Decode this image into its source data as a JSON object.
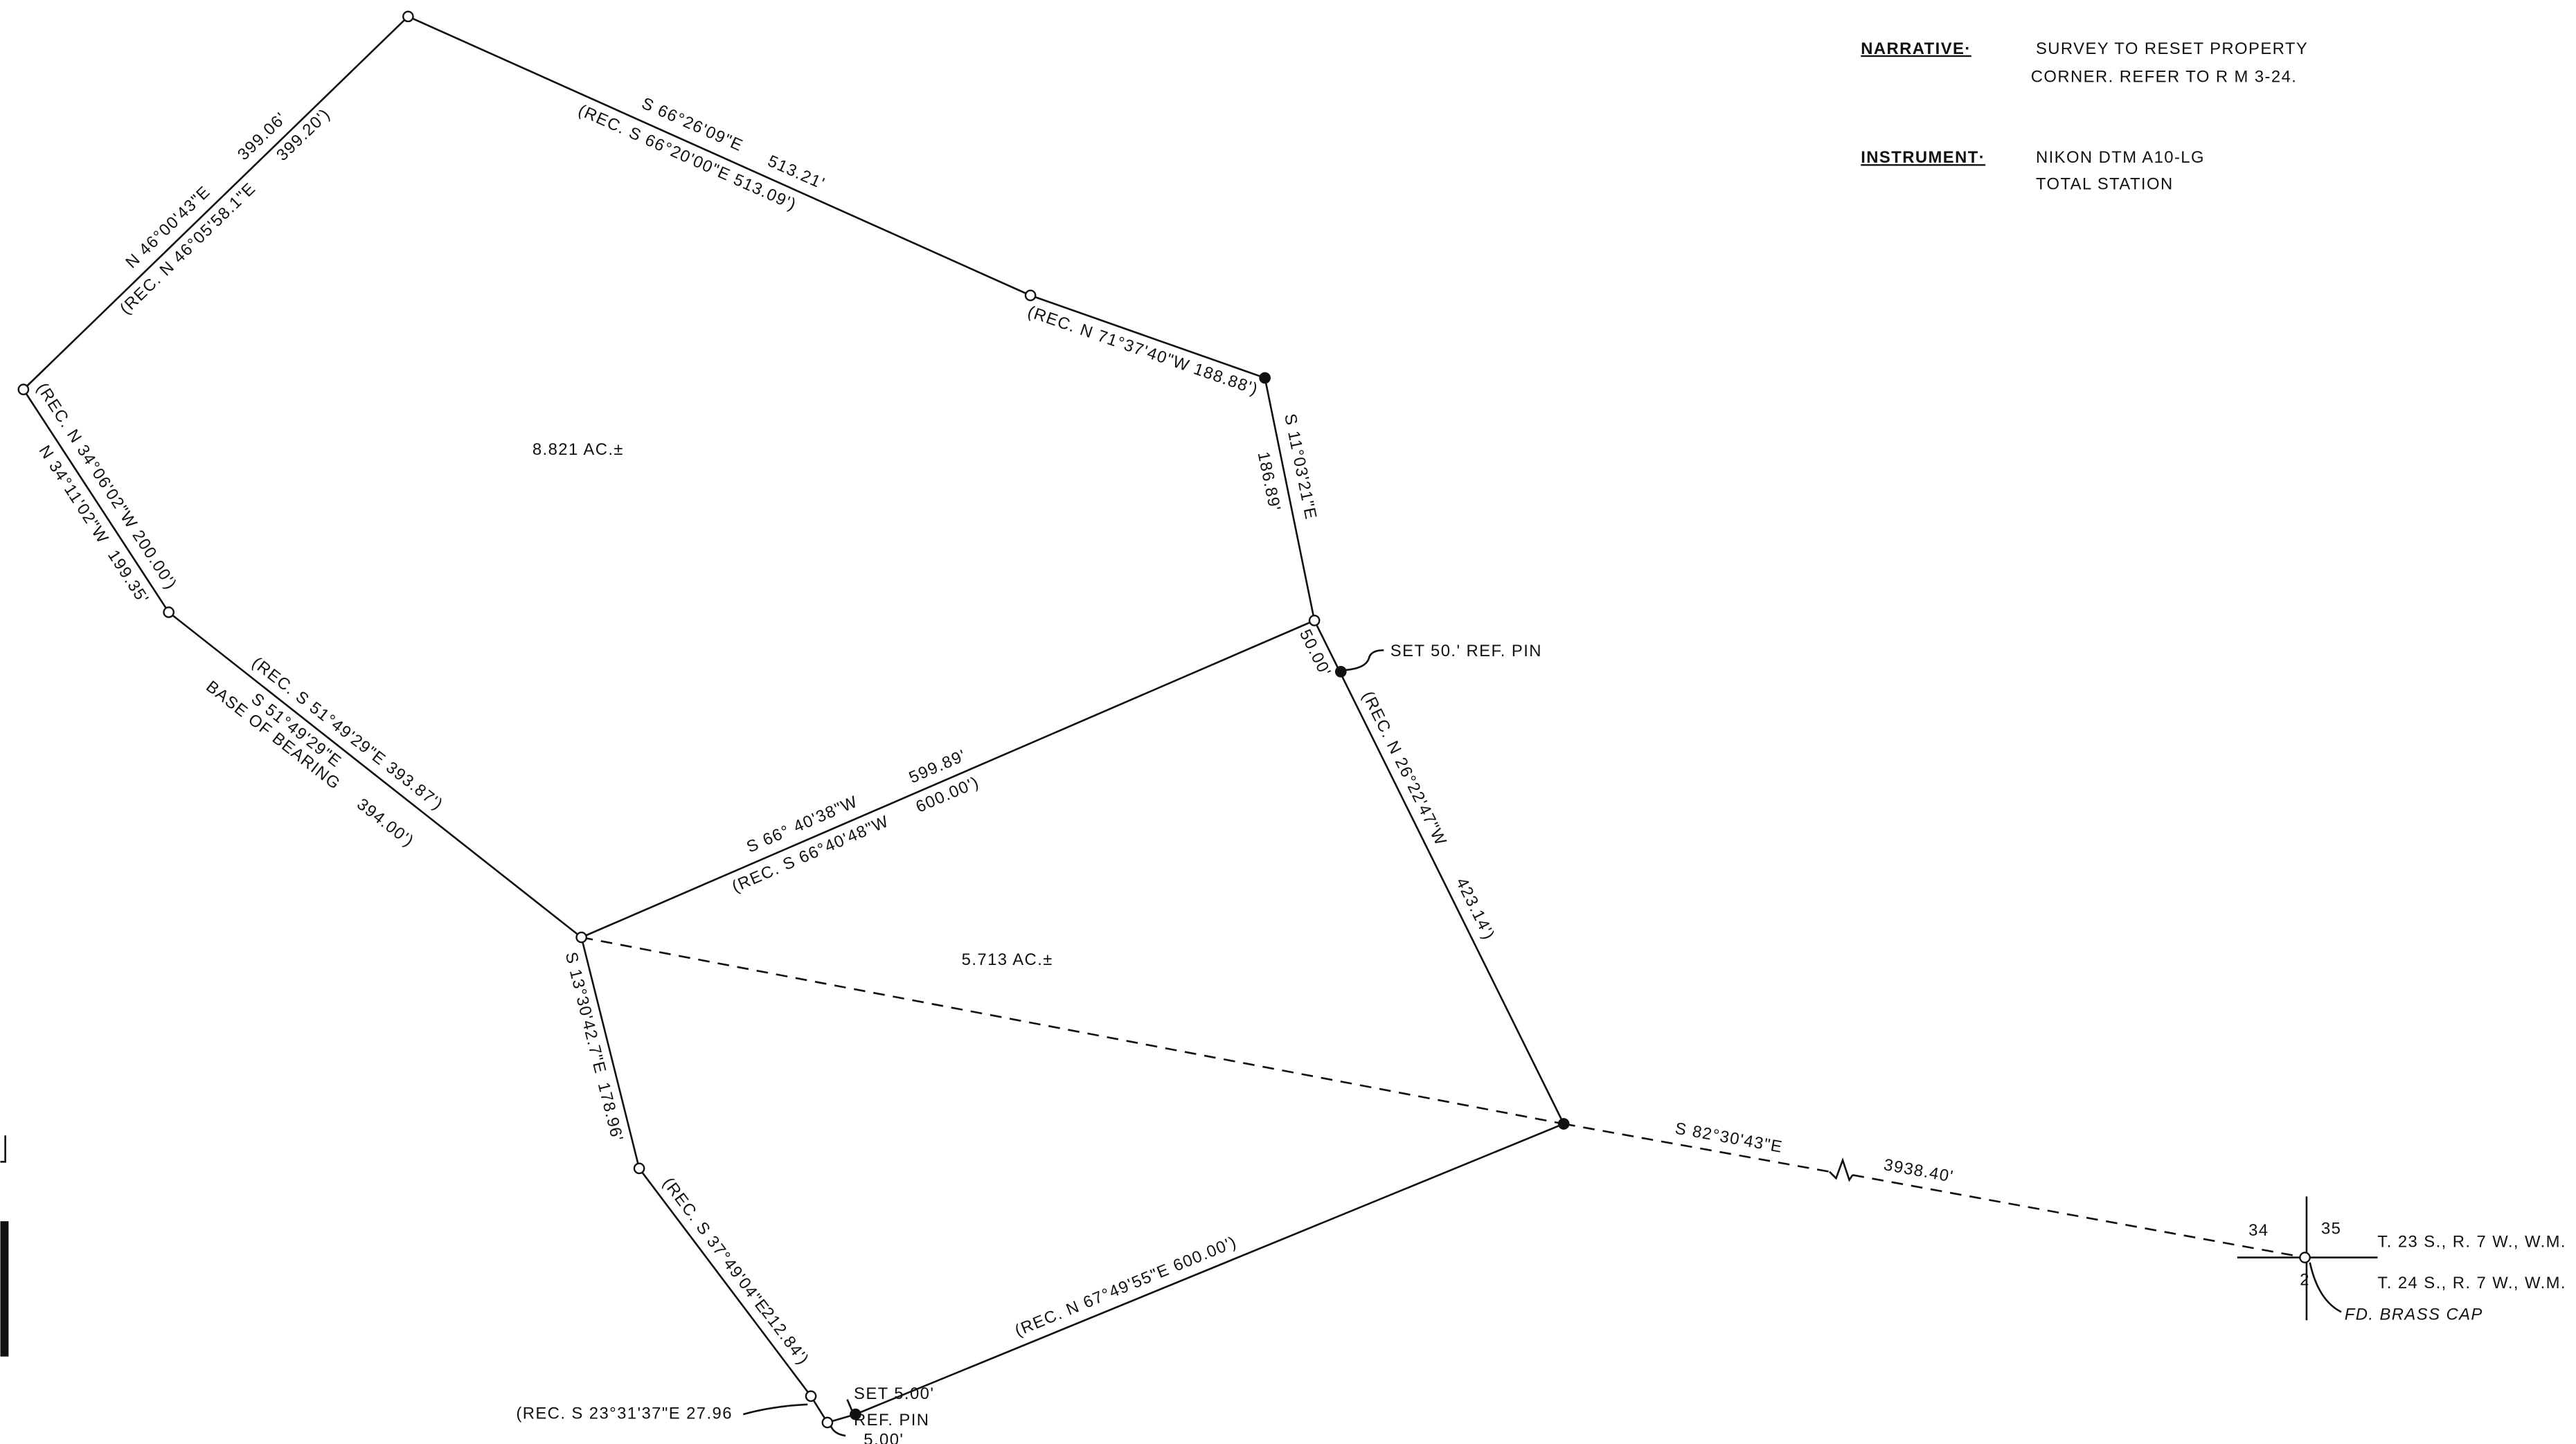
{
  "notes": {
    "narrative_label": "NARRATIVE·",
    "narrative_lines": [
      "SURVEY TO RESET PROPERTY",
      "CORNER. REFER TO R M 3-24."
    ],
    "instrument_label": "INSTRUMENT·",
    "instrument_lines": [
      "NIKON DTM A10-LG",
      "TOTAL STATION"
    ]
  },
  "labels": [
    "N 46°00'43\"E",
    "399.06'",
    "(REC. N 46°05'58.1\"E",
    "399.20')",
    "S 66°26'09\"E",
    "513.21'",
    "(REC. S 66°20'00\"E",
    "513.09')",
    "(REC. N 71°37'40\"W 188.88')",
    "S 11°03'21\"E",
    "186.89'",
    "8.821 AC.±",
    "(REC. N 34°06'02\"W 200.00')",
    "N 34°11'02\"W",
    "199.35'",
    "(REC. S 51°49'29\"E  393.87')",
    "S 51°49'29\"E",
    "BASE OF BEARING",
    "394.00')",
    "50.00'",
    "SET 50.' REF. PIN",
    "S 66° 40'38\"W",
    "599.89'",
    "(REC. S 66°40'48\"W",
    "600.00')",
    "(REC. N 26°22'47\"W",
    "423.14')",
    "5.713 AC.±",
    "S 13°30'42.7\"E",
    "178.96'",
    "(REC. S 37°49'04\"E",
    "212.84')",
    "(REC. S 23°31'37\"E  27.96",
    "SET 5.00'",
    "REF. PIN",
    "5.00'",
    "(REC. N 67°49'55\"E  600.00')",
    "S 82°30'43\"E",
    "3938.40'",
    "34",
    "35",
    "2",
    "T. 23 S., R. 7 W., W.M.",
    "T. 24 S., R. 7 W., W.M.",
    "FD. BRASS CAP"
  ]
}
